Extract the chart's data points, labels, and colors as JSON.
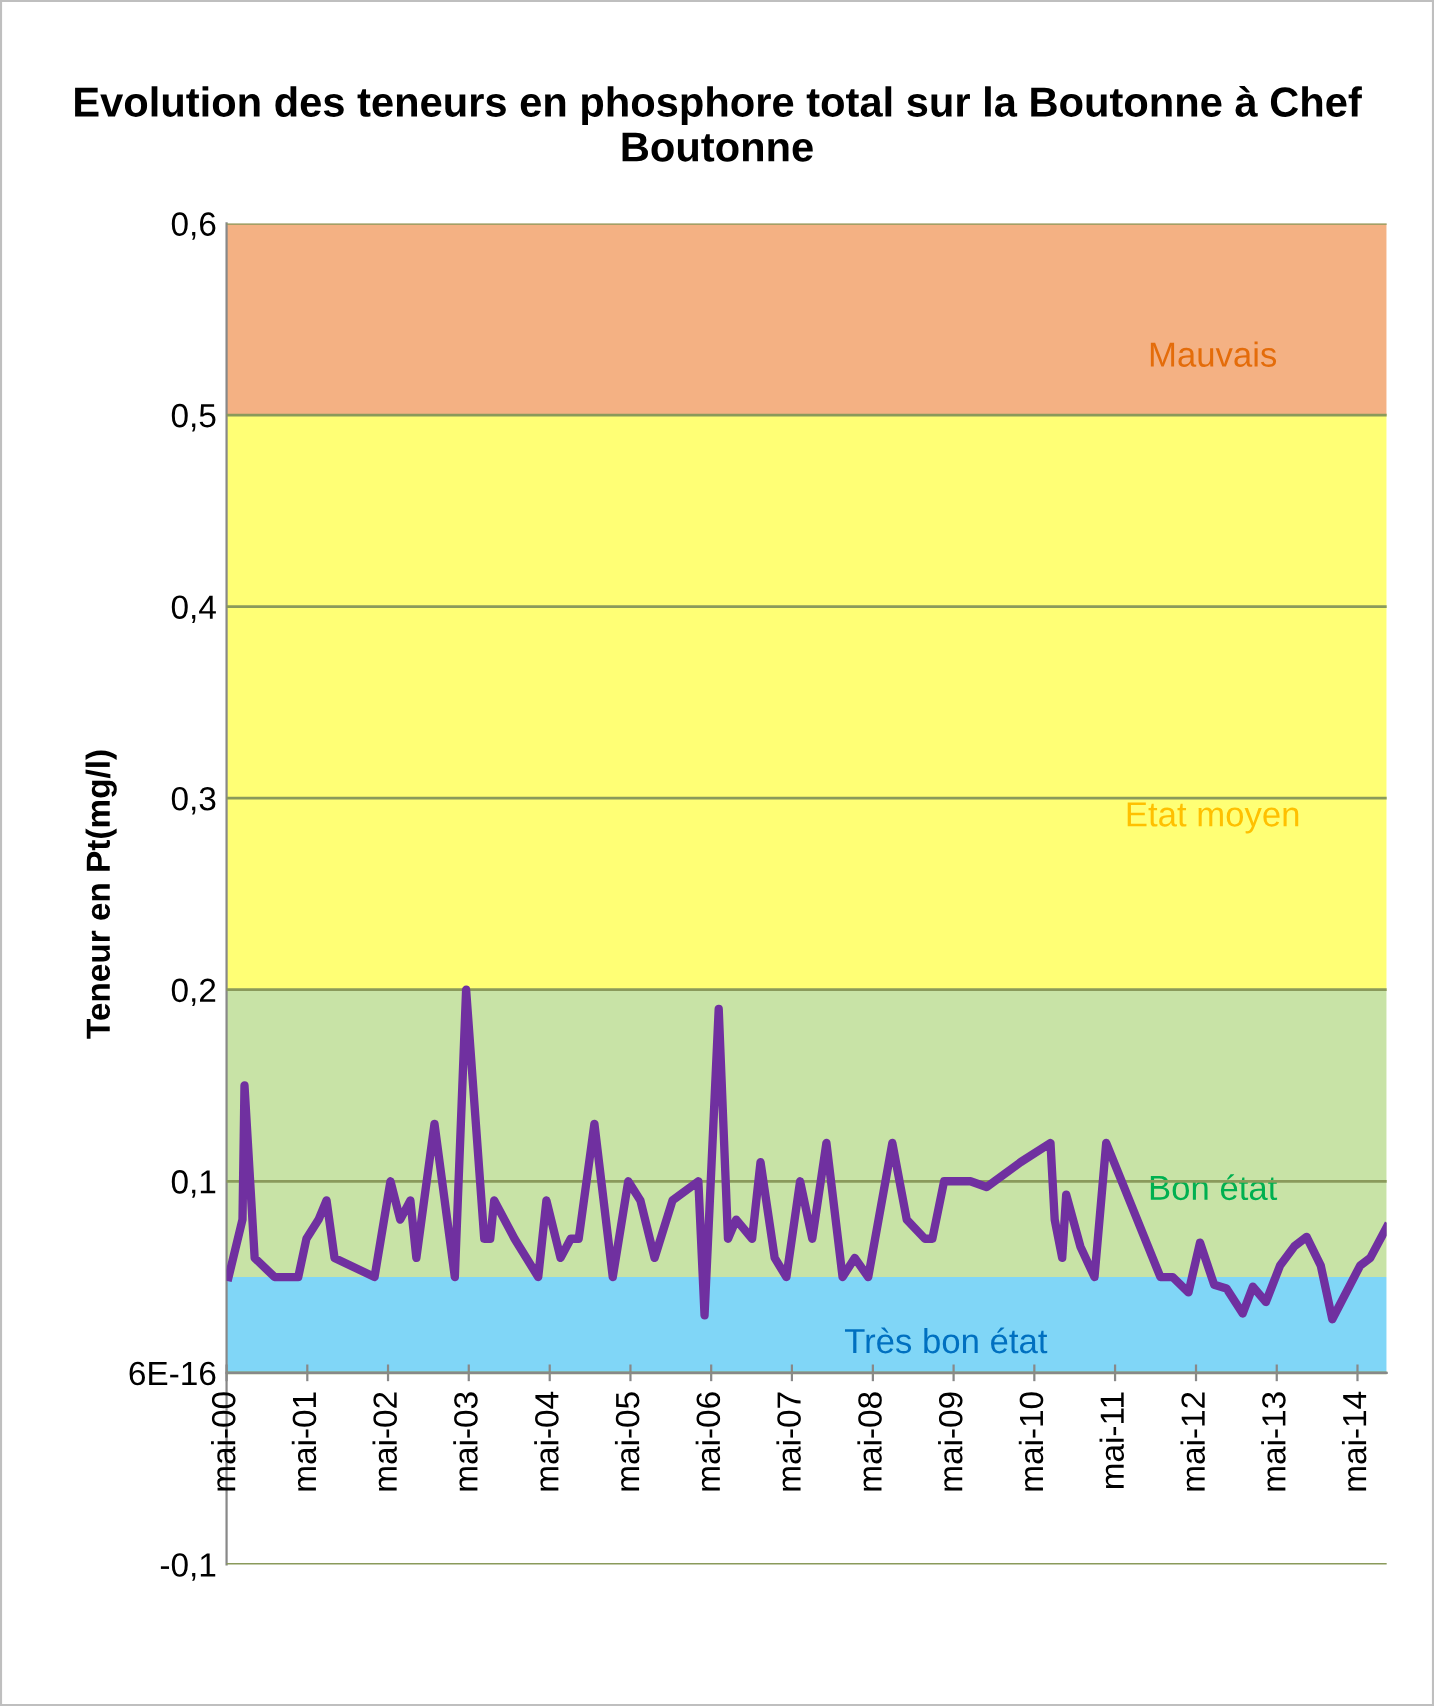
{
  "chart_data": {
    "type": "line",
    "title": "Evolution des teneurs en phosphore total sur la Boutonne à Chef Boutonne",
    "ylabel": "Teneur en Pt(mg/l)",
    "x": [
      "2000-05-10",
      "2000-07-12",
      "2000-07-21",
      "2000-09-05",
      "2000-12-04",
      "2001-03-21",
      "2001-04-27",
      "2001-06-21",
      "2001-07-27",
      "2001-09-01",
      "2002-03-01",
      "2002-05-12",
      "2002-06-25",
      "2002-08-10",
      "2002-09-06",
      "2002-11-27",
      "2003-02-27",
      "2003-04-19",
      "2003-07-10",
      "2003-08-06",
      "2003-08-24",
      "2003-11-24",
      "2004-03-10",
      "2004-04-16",
      "2004-06-19",
      "2004-08-04",
      "2004-09-09",
      "2004-11-19",
      "2005-02-10",
      "2005-04-21",
      "2005-06-15",
      "2005-08-18",
      "2005-11-07",
      "2006-03-04",
      "2006-04-01",
      "2006-06-04",
      "2006-07-16",
      "2006-08-22",
      "2006-11-02",
      "2006-12-10",
      "2007-02-12",
      "2007-04-06",
      "2007-06-07",
      "2007-08-01",
      "2007-10-04",
      "2007-12-16",
      "2008-02-09",
      "2008-04-10",
      "2008-07-28",
      "2008-10-01",
      "2008-12-22",
      "2009-01-25",
      "2009-03-19",
      "2009-07-16",
      "2009-09-27",
      "2010-02-28",
      "2010-07-13",
      "2010-08-01",
      "2010-09-04",
      "2010-09-22",
      "2010-11-25",
      "2011-01-28",
      "2011-03-22",
      "2011-11-22",
      "2012-01-16",
      "2012-03-28",
      "2012-05-19",
      "2012-07-22",
      "2012-09-16",
      "2012-11-28",
      "2013-01-13",
      "2013-03-13",
      "2013-05-16",
      "2013-07-19",
      "2013-09-13",
      "2013-11-16",
      "2014-01-07",
      "2014-05-13",
      "2014-06-28",
      "2014-09-10"
    ],
    "series": [
      {
        "color": "#7030a0",
        "values": [
          0.05,
          0.08,
          0.15,
          0.06,
          0.05,
          0.05,
          0.07,
          0.08,
          0.09,
          0.06,
          0.05,
          0.1,
          0.08,
          0.09,
          0.06,
          0.13,
          0.05,
          0.2,
          0.07,
          0.07,
          0.09,
          0.07,
          0.05,
          0.09,
          0.06,
          0.07,
          0.07,
          0.13,
          0.05,
          0.1,
          0.09,
          0.06,
          0.09,
          0.1,
          0.03,
          0.19,
          0.07,
          0.08,
          0.07,
          0.11,
          0.06,
          0.05,
          0.1,
          0.07,
          0.12,
          0.05,
          0.06,
          0.05,
          0.12,
          0.08,
          0.07,
          0.07,
          0.1,
          0.1,
          0.097,
          0.11,
          0.12,
          0.08,
          0.06,
          0.093,
          0.066,
          0.05,
          0.12,
          0.05,
          0.05,
          0.042,
          0.068,
          0.046,
          0.044,
          0.031,
          0.045,
          0.037,
          0.056,
          0.066,
          0.071,
          0.056,
          0.028,
          0.056,
          0.06,
          0.076
        ]
      }
    ],
    "xlim": [
      "2000-05-01",
      "2014-09-10"
    ],
    "xticks": [
      {
        "value": "2000-05-01",
        "label": "mai-00"
      },
      {
        "value": "2001-05-01",
        "label": "mai-01"
      },
      {
        "value": "2002-05-01",
        "label": "mai-02"
      },
      {
        "value": "2003-05-01",
        "label": "mai-03"
      },
      {
        "value": "2004-05-01",
        "label": "mai-04"
      },
      {
        "value": "2005-05-01",
        "label": "mai-05"
      },
      {
        "value": "2006-05-01",
        "label": "mai-06"
      },
      {
        "value": "2007-05-01",
        "label": "mai-07"
      },
      {
        "value": "2008-05-01",
        "label": "mai-08"
      },
      {
        "value": "2009-05-01",
        "label": "mai-09"
      },
      {
        "value": "2010-05-01",
        "label": "mai-10"
      },
      {
        "value": "2011-05-01",
        "label": "mai-11"
      },
      {
        "value": "2012-05-01",
        "label": "mai-12"
      },
      {
        "value": "2013-05-01",
        "label": "mai-13"
      },
      {
        "value": "2014-05-01",
        "label": "mai-14"
      }
    ],
    "ylim": [
      -0.1,
      0.6
    ],
    "yticks": [
      {
        "value": -0.1,
        "label": "-0,1"
      },
      {
        "value": 0,
        "label": "6E-16"
      },
      {
        "value": 0.1,
        "label": "0,1"
      },
      {
        "value": 0.2,
        "label": "0,2"
      },
      {
        "value": 0.3,
        "label": "0,3"
      },
      {
        "value": 0.4,
        "label": "0,4"
      },
      {
        "value": 0.5,
        "label": "0,5"
      },
      {
        "value": 0.6,
        "label": "0,6"
      }
    ],
    "bands": [
      {
        "axis": "y",
        "from": 0.5,
        "to": 0.6,
        "label": "Mauvais",
        "color": "#f4b183"
      },
      {
        "axis": "y",
        "from": 0.2,
        "to": 0.5,
        "label": "Etat moyen",
        "color": "#ffff75"
      },
      {
        "axis": "y",
        "from": 0.05,
        "to": 0.2,
        "label": "Bon état",
        "color": "#c8e3a6"
      },
      {
        "axis": "y",
        "from": 0,
        "to": 0.05,
        "label": "Très bon état",
        "color": "#80d6f7"
      }
    ],
    "grid": "y",
    "legend": false,
    "marker": "none",
    "line_style": "solid"
  }
}
